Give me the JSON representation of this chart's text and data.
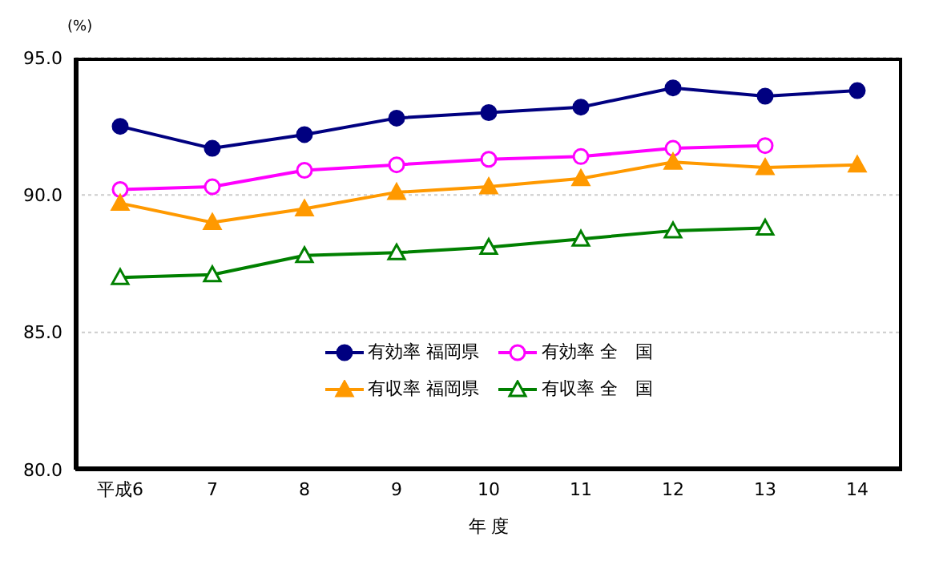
{
  "chart_data": {
    "type": "line",
    "xlabel": "年 度",
    "ylabel": "(%)",
    "categories": [
      "平成6",
      "7",
      "8",
      "9",
      "10",
      "11",
      "12",
      "13",
      "14"
    ],
    "series": [
      {
        "name": "有効率 福岡県",
        "color": "#000080",
        "marker": "circle",
        "values": [
          92.5,
          91.7,
          92.2,
          92.8,
          93.0,
          93.2,
          93.9,
          93.6,
          93.8
        ]
      },
      {
        "name": "有効率 全　国",
        "color": "#ff00ff",
        "marker": "circle",
        "values": [
          90.2,
          90.3,
          90.9,
          91.1,
          91.3,
          91.4,
          91.7,
          91.8,
          null
        ]
      },
      {
        "name": "有収率 福岡県",
        "color": "#ff9900",
        "marker": "triangle",
        "values": [
          89.7,
          89.0,
          89.5,
          90.1,
          90.3,
          90.6,
          91.2,
          91.0,
          91.1
        ]
      },
      {
        "name": "有収率 全　国",
        "color": "#008000",
        "marker": "triangle",
        "values": [
          87.0,
          87.1,
          87.8,
          87.9,
          88.1,
          88.4,
          88.7,
          88.8,
          null
        ]
      }
    ],
    "ylim": [
      80,
      95
    ],
    "yticks": [
      {
        "value": 80,
        "label": "80.0"
      },
      {
        "value": 85,
        "label": "85.0"
      },
      {
        "value": 90,
        "label": "90.0"
      },
      {
        "value": 95,
        "label": "95.0"
      }
    ],
    "grid": "y",
    "legend": "bottom"
  }
}
